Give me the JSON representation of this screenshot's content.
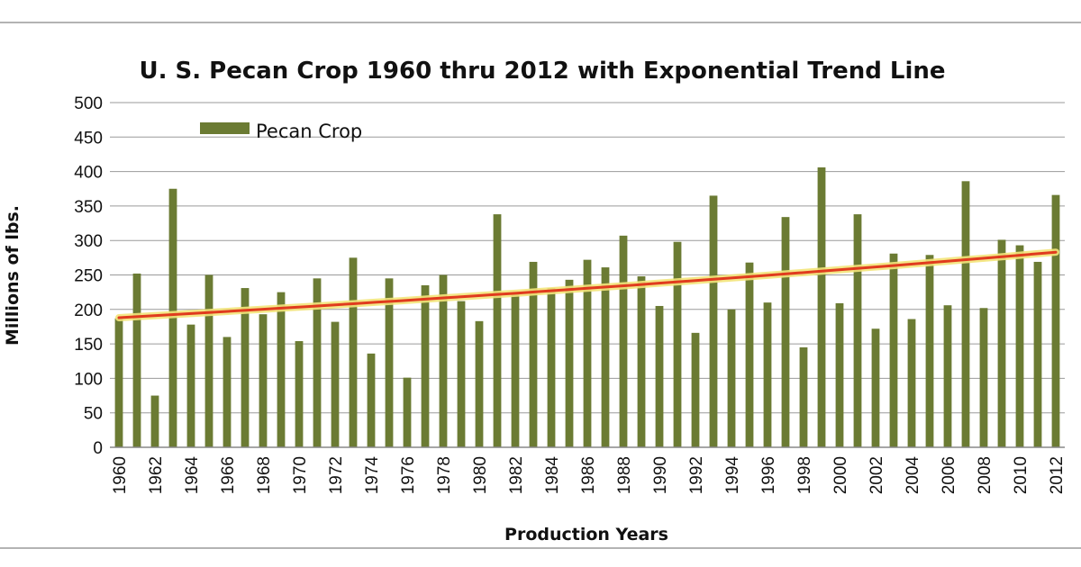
{
  "chart_data": {
    "type": "bar",
    "title": "U. S. Pecan Crop 1960 thru 2012 with Exponential Trend Line",
    "xlabel": "Production Years",
    "ylabel": "Millions of lbs.",
    "ylim": [
      0,
      500
    ],
    "yticks": [
      "0",
      "50",
      "100",
      "150",
      "200",
      "250",
      "300",
      "350",
      "400",
      "450",
      "500"
    ],
    "x_tick_labels": [
      "1960",
      "1962",
      "1964",
      "1966",
      "1968",
      "1970",
      "1972",
      "1974",
      "1976",
      "1978",
      "1980",
      "1982",
      "1984",
      "1986",
      "1988",
      "1990",
      "1992",
      "1994",
      "1996",
      "1998",
      "2000",
      "2002",
      "2004",
      "2006",
      "2008",
      "2010",
      "2012"
    ],
    "grid": "horizontal",
    "legend_position": "top-left",
    "categories": [
      1960,
      1961,
      1962,
      1963,
      1964,
      1965,
      1966,
      1967,
      1968,
      1969,
      1970,
      1971,
      1972,
      1973,
      1974,
      1975,
      1976,
      1977,
      1978,
      1979,
      1980,
      1981,
      1982,
      1983,
      1984,
      1985,
      1986,
      1987,
      1988,
      1989,
      1990,
      1991,
      1992,
      1993,
      1994,
      1995,
      1996,
      1997,
      1998,
      1999,
      2000,
      2001,
      2002,
      2003,
      2004,
      2005,
      2006,
      2007,
      2008,
      2009,
      2010,
      2011,
      2012
    ],
    "series": [
      {
        "name": "Pecan Crop",
        "color": "#6b7b33",
        "values": [
          187,
          252,
          75,
          375,
          178,
          250,
          160,
          231,
          193,
          225,
          154,
          245,
          182,
          275,
          136,
          245,
          101,
          235,
          250,
          212,
          183,
          338,
          222,
          269,
          231,
          243,
          272,
          261,
          307,
          248,
          205,
          298,
          166,
          365,
          200,
          268,
          210,
          334,
          145,
          406,
          209,
          338,
          172,
          281,
          186,
          279,
          206,
          386,
          202,
          301,
          293,
          269,
          366
        ]
      }
    ],
    "trendline": {
      "type": "exponential",
      "start": [
        1960,
        188
      ],
      "end": [
        2012,
        283
      ],
      "color": "#e03b1e",
      "glow_color": "#f3e47a"
    }
  }
}
